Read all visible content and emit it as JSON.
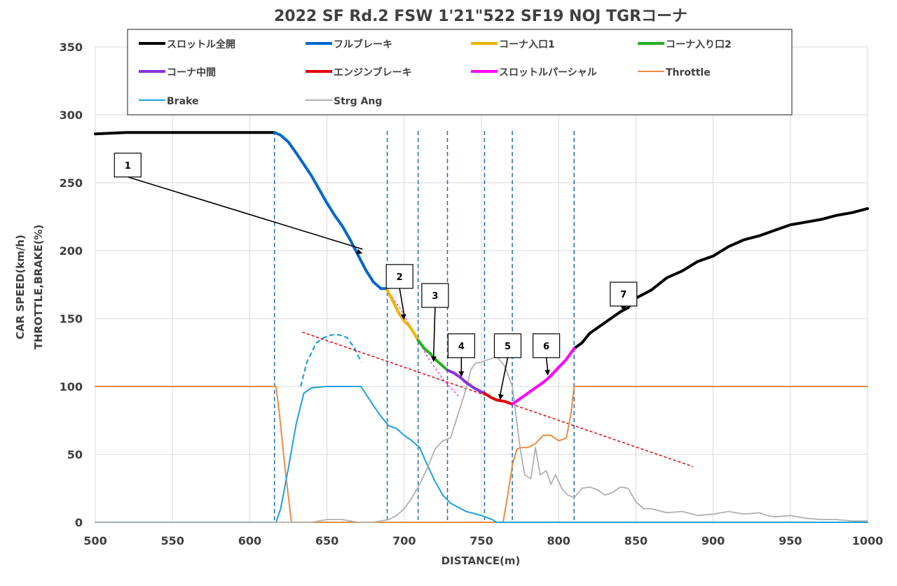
{
  "chart_data": {
    "type": "line",
    "title": "2022 SF Rd.2 FSW 1'21\"522 SF19 NOJ TGRコーナ",
    "xlabel": "DISTANCE(m)",
    "ylabel_lines": [
      "CAR SPEED(km/h)",
      "THROTTLE,BRAKE(%)"
    ],
    "xlim": [
      500,
      1000
    ],
    "ylim": [
      0,
      350
    ],
    "x_ticks": [
      500,
      550,
      600,
      650,
      700,
      750,
      800,
      850,
      900,
      950,
      1000
    ],
    "y_ticks": [
      0,
      50,
      100,
      150,
      200,
      250,
      300,
      350
    ],
    "x_tick_labels": [
      "500",
      "550",
      "600",
      "650",
      "700",
      "750",
      "800",
      "850",
      "900",
      "950",
      "1000"
    ],
    "y_tick_labels": [
      "0",
      "50",
      "100",
      "150",
      "200",
      "250",
      "300",
      "350"
    ],
    "grid": true,
    "legend_position": "top",
    "series": [
      {
        "name": "スロットル全開",
        "color": "#000000",
        "x": [
          500,
          520,
          540,
          560,
          580,
          600,
          616
        ],
        "y": [
          286,
          287,
          287,
          287,
          287,
          287,
          287
        ]
      },
      {
        "name": "スロットル全開",
        "color": "#000000",
        "x": [
          810,
          815,
          820,
          830,
          840,
          845,
          850,
          860,
          870,
          880,
          890,
          900,
          910,
          920,
          930,
          940,
          950,
          960,
          970,
          980,
          990,
          1000
        ],
        "y": [
          128,
          132,
          139,
          147,
          155,
          158,
          165,
          171,
          180,
          185,
          192,
          196,
          203,
          208,
          211,
          215,
          219,
          221,
          223,
          226,
          228,
          231
        ]
      },
      {
        "name": "フルブレーキ",
        "color": "#0066cc",
        "x": [
          616,
          620,
          625,
          630,
          640,
          650,
          655,
          660,
          665,
          670,
          675,
          680,
          685,
          689
        ],
        "y": [
          287,
          285,
          280,
          272,
          255,
          235,
          226,
          218,
          208,
          197,
          186,
          177,
          172,
          172
        ]
      },
      {
        "name": "コーナ入口1",
        "color": "#f0b400",
        "x": [
          689,
          693,
          697,
          700,
          703,
          706,
          709
        ],
        "y": [
          171,
          162,
          153,
          148,
          145,
          140,
          134
        ]
      },
      {
        "name": "コーナ入り口2",
        "color": "#22b022",
        "x": [
          709,
          713,
          717,
          721,
          725,
          728
        ],
        "y": [
          134,
          128,
          124,
          119,
          115,
          112
        ]
      },
      {
        "name": "コーナ中間",
        "color": "#8a30d8",
        "x": [
          728,
          732,
          736,
          740,
          745,
          750,
          752
        ],
        "y": [
          112,
          110,
          107,
          103,
          99,
          96,
          95
        ]
      },
      {
        "name": "エンジンブレーキ",
        "color": "#e00000",
        "x": [
          752,
          756,
          760,
          765,
          770
        ],
        "y": [
          95,
          92,
          90,
          89,
          87
        ]
      },
      {
        "name": "スロットルパーシャル",
        "color": "#ff00ff",
        "x": [
          770,
          775,
          780,
          785,
          790,
          795,
          800,
          805,
          810
        ],
        "y": [
          87,
          91,
          95,
          99,
          103,
          108,
          114,
          120,
          128
        ]
      },
      {
        "name": "Throttle",
        "color": "#f08a40",
        "x": [
          500,
          617,
          619,
          623,
          627,
          700,
          764,
          767,
          770,
          773,
          776,
          780,
          785,
          790,
          795,
          800,
          805,
          808,
          810,
          1000
        ],
        "y": [
          100,
          100,
          82,
          38,
          0,
          0,
          0,
          20,
          42,
          54,
          55,
          55,
          58,
          64,
          64,
          60,
          62,
          80,
          100,
          100
        ]
      },
      {
        "name": "Brake",
        "color": "#1ca0e0",
        "x": [
          500,
          617,
          620,
          625,
          630,
          635,
          640,
          650,
          672,
          680,
          685,
          690,
          695,
          700,
          705,
          710,
          715,
          720,
          725,
          730,
          740,
          750,
          757,
          760,
          1000
        ],
        "y": [
          0,
          0,
          10,
          40,
          72,
          95,
          99,
          100,
          100,
          86,
          78,
          71,
          69,
          64,
          60,
          55,
          42,
          30,
          20,
          14,
          8,
          5,
          2,
          0,
          0
        ]
      },
      {
        "name": "Strg Ang",
        "color": "#b0b0b0",
        "x": [
          500,
          640,
          650,
          660,
          670,
          680,
          690,
          695,
          700,
          705,
          710,
          715,
          720,
          725,
          730,
          735,
          740,
          743,
          746,
          750,
          755,
          760,
          765,
          770,
          775,
          778,
          782,
          785,
          788,
          792,
          795,
          798,
          802,
          806,
          810,
          815,
          820,
          825,
          830,
          835,
          840,
          845,
          850,
          855,
          860,
          870,
          880,
          890,
          900,
          910,
          920,
          930,
          935,
          940,
          950,
          960,
          970,
          980,
          990,
          1000
        ],
        "y": [
          0,
          0,
          2,
          2,
          0,
          0,
          2,
          5,
          10,
          18,
          28,
          40,
          54,
          60,
          62,
          80,
          98,
          112,
          117,
          118,
          120,
          122,
          115,
          100,
          55,
          35,
          32,
          55,
          35,
          38,
          28,
          35,
          25,
          20,
          18,
          25,
          26,
          24,
          20,
          22,
          26,
          25,
          15,
          10,
          10,
          7,
          8,
          5,
          6,
          8,
          6,
          7,
          5,
          4,
          5,
          3,
          2,
          2,
          1,
          1
        ]
      }
    ],
    "brake_guide": {
      "name": "",
      "color": "#1ca0e0",
      "x": [
        633,
        637,
        643,
        648,
        653,
        658,
        663,
        668,
        672
      ],
      "y": [
        100,
        118,
        132,
        136,
        138,
        138,
        136,
        128,
        118
      ]
    },
    "trend_line": {
      "color": "#e00000",
      "x": [
        634,
        887
      ],
      "y": [
        140,
        41
      ]
    },
    "corner_guide": {
      "color": "#ff00ff",
      "x": [
        689,
        697,
        706,
        716,
        726,
        736
      ],
      "y": [
        171,
        158,
        140,
        120,
        104,
        92
      ]
    },
    "markers_x": [
      616,
      689,
      709,
      728,
      752,
      770,
      810
    ],
    "callouts": [
      {
        "label": "1",
        "box": [
          521,
          263
        ],
        "arrow_to": [
          673,
          198
        ]
      },
      {
        "label": "2",
        "box": [
          697,
          181
        ],
        "arrow_to": [
          700,
          149
        ]
      },
      {
        "label": "3",
        "box": [
          720,
          167
        ],
        "arrow_to": [
          719,
          118
        ]
      },
      {
        "label": "4",
        "box": [
          737,
          130
        ],
        "arrow_to": [
          737,
          107
        ]
      },
      {
        "label": "5",
        "box": [
          767,
          130
        ],
        "arrow_to": [
          762,
          90
        ]
      },
      {
        "label": "6",
        "box": [
          792,
          130
        ],
        "arrow_to": [
          793,
          108
        ]
      },
      {
        "label": "7",
        "box": [
          842,
          168
        ],
        "arrow_to": [
          842,
          155
        ]
      }
    ],
    "legend_items": [
      {
        "name": "スロットル全開",
        "color": "#000000"
      },
      {
        "name": "フルブレーキ",
        "color": "#0066cc"
      },
      {
        "name": "コーナ入口1",
        "color": "#f0b400"
      },
      {
        "name": "コーナ入り口2",
        "color": "#22b022"
      },
      {
        "name": "コーナ中間",
        "color": "#8a30d8"
      },
      {
        "name": "エンジンブレーキ",
        "color": "#e00000"
      },
      {
        "name": "スロットルパーシャル",
        "color": "#ff00ff"
      },
      {
        "name": "Throttle",
        "color": "#f08a40"
      },
      {
        "name": "Brake",
        "color": "#1ca0e0"
      },
      {
        "name": "Strg Ang",
        "color": "#b0b0b0"
      }
    ]
  }
}
